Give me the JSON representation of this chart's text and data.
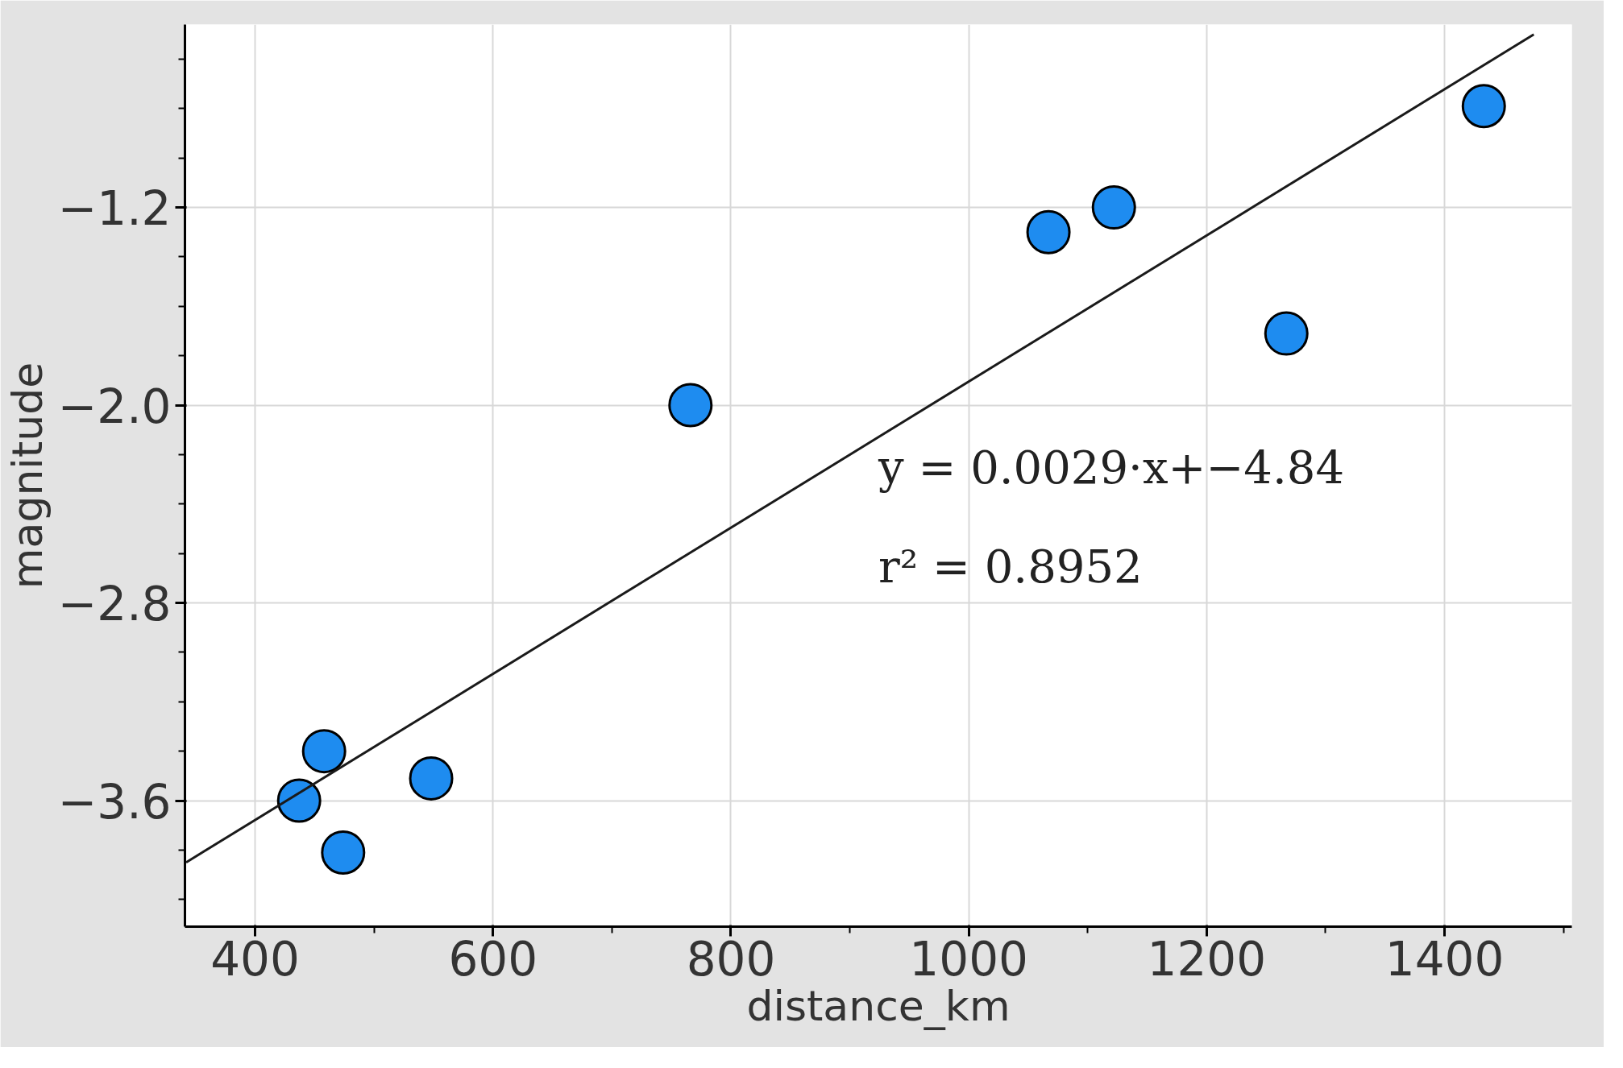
{
  "chart_data": {
    "type": "scatter",
    "xlabel": "distance_km",
    "ylabel": "magnitude",
    "xlim": [
      341,
      1507
    ],
    "ylim": [
      -4.11,
      -0.46
    ],
    "xticks": [
      400,
      600,
      800,
      1000,
      1200,
      1400
    ],
    "yticks": [
      {
        "value": -1.2,
        "label": "−1.2"
      },
      {
        "value": -2.0,
        "label": "−2.0"
      },
      {
        "value": -2.8,
        "label": "−2.8"
      },
      {
        "value": -3.6,
        "label": "−3.6"
      }
    ],
    "grid": true,
    "series": [
      {
        "marker": "circle",
        "color": "#1e8cf0",
        "x": [
          1433,
          1122,
          1067,
          1267,
          766,
          458,
          548,
          437,
          474
        ],
        "values": [
          -0.79,
          -1.2,
          -1.3,
          -1.71,
          -2.0,
          -3.4,
          -3.51,
          -3.6,
          -3.81
        ]
      },
      {
        "type": "line",
        "marker": "none",
        "color": "#1a1a1a",
        "x": [
          342,
          1475
        ],
        "values": [
          -3.85,
          -0.5
        ]
      }
    ],
    "annotations": [
      "y = 0.0029·x+−4.84",
      "r² = 0.8952"
    ]
  }
}
